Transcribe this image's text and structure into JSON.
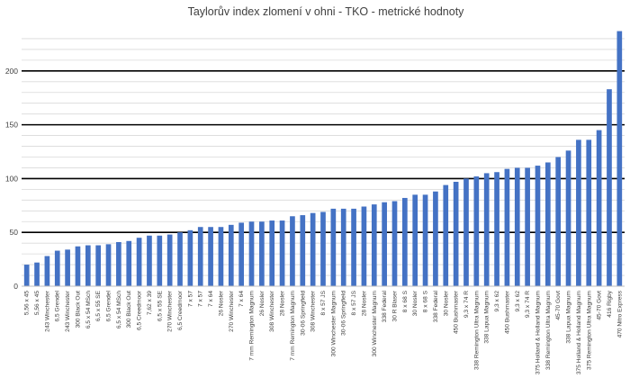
{
  "chart_data": {
    "type": "bar",
    "title": "Taylorův index zlomení v ohni - TKO - metrické hodnoty",
    "xlabel": "",
    "ylabel": "",
    "ylim": [
      0,
      240
    ],
    "yticks": [
      0,
      50,
      100,
      150,
      200
    ],
    "major_grid": [
      50,
      100,
      150,
      200
    ],
    "minor_grid_step": 10,
    "legend": "none",
    "bar_color": "#4472c4",
    "categories": [
      "5,56 x 45",
      "5,56 x 45",
      "243 Winchester",
      "6,5 Grendel",
      "243 Winchester",
      "300 Black Out",
      "6,5 x 54 MSch",
      "6,5 x 55 SE",
      "6,5 Grendel",
      "6,5 x 54 MSch",
      "300 Black Out",
      "6,5 Creedmoor",
      "7,62 x 39",
      "6,5 x 55 SE",
      "270 Winchester",
      "6,5 Creedmoor",
      "7 x 57",
      "7 x 57",
      "7 x 64",
      "26 Nosler",
      "270 Winchester",
      "7 x 64",
      "7 mm Remington Magnum",
      "26 Nosler",
      "308 Winchester",
      "28 Nosler",
      "7 mm Remington Magnum",
      "30-06 Springfield",
      "308 Winchester",
      "8 x 57 JS",
      "300 Winchester Magnum",
      "30-06 Springfield",
      "8 x 57 JS",
      "28 Nosler",
      "300 Winchester Magnum",
      "338 Federal",
      "30 R Blaser",
      "8 x 68 S",
      "30 Nosler",
      "8 x 68 S",
      "338 Federal",
      "30 Nosler",
      "450 Bushmaster",
      "9,3 x 74 R",
      "338 Remington Ultra Magnum",
      "338 Lapua Magnum",
      "9,3 x 62",
      "450 Bushmaster",
      "9,3 x 62",
      "9,3 x 74 R",
      "375 Holland & Holland Magnum",
      "338 Remington Ultra Magnum",
      "45-70 Govt",
      "338 Lapua Magnum",
      "375 Holland & Holland Magnum",
      "375 Remington Ultra Magnum",
      "45-70 Govt",
      "416 Rigby",
      "470 Nitro Express"
    ],
    "values": [
      20,
      22,
      28,
      33,
      34,
      37,
      38,
      38,
      39,
      41,
      42,
      45,
      47,
      47,
      48,
      50,
      52,
      55,
      55,
      55,
      57,
      59,
      60,
      60,
      61,
      61,
      65,
      66,
      68,
      69,
      72,
      72,
      72,
      74,
      76,
      78,
      79,
      82,
      85,
      85,
      88,
      94,
      97,
      100,
      102,
      105,
      106,
      109,
      110,
      110,
      112,
      115,
      120,
      126,
      136,
      136,
      145,
      183,
      237
    ]
  }
}
